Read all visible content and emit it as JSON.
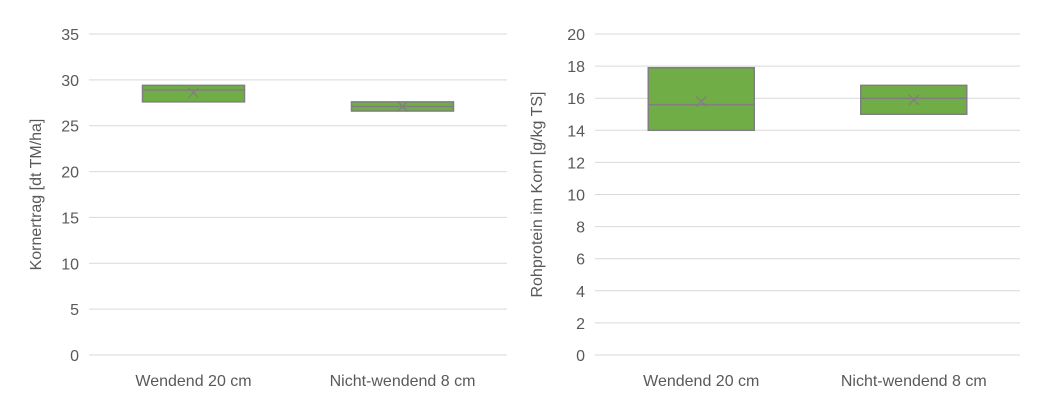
{
  "colors": {
    "box_fill": "#70ad47",
    "box_stroke": "#7f7f7f",
    "grid": "#d9d9d9",
    "text": "#595959"
  },
  "chart_data": [
    {
      "type": "box",
      "title": "",
      "xlabel": "",
      "ylabel": "Kornertrag [dt TM/ha]",
      "ylim": [
        0,
        35
      ],
      "yticks": [
        0,
        5,
        10,
        15,
        20,
        25,
        30,
        35
      ],
      "grid": true,
      "categories": [
        "Wendend 20 cm",
        "Nicht-wendend 8 cm"
      ],
      "boxes": [
        {
          "min": 27.6,
          "q1": 27.6,
          "median": 28.9,
          "q3": 29.4,
          "max": 29.4,
          "mean": 28.6
        },
        {
          "min": 26.6,
          "q1": 26.6,
          "median": 27.1,
          "q3": 27.6,
          "max": 27.6,
          "mean": 27.1
        }
      ]
    },
    {
      "type": "box",
      "title": "",
      "xlabel": "",
      "ylabel": "Rohprotein im Korn [g/kg TS]",
      "ylim": [
        0,
        20
      ],
      "yticks": [
        0,
        2,
        4,
        6,
        8,
        10,
        12,
        14,
        16,
        18,
        20
      ],
      "grid": true,
      "categories": [
        "Wendend 20 cm",
        "Nicht-wendend 8 cm"
      ],
      "boxes": [
        {
          "min": 14.0,
          "q1": 14.0,
          "median": 15.6,
          "q3": 17.9,
          "max": 17.9,
          "mean": 15.8
        },
        {
          "min": 15.0,
          "q1": 15.0,
          "median": 16.0,
          "q3": 16.8,
          "max": 16.8,
          "mean": 15.9
        }
      ]
    }
  ]
}
